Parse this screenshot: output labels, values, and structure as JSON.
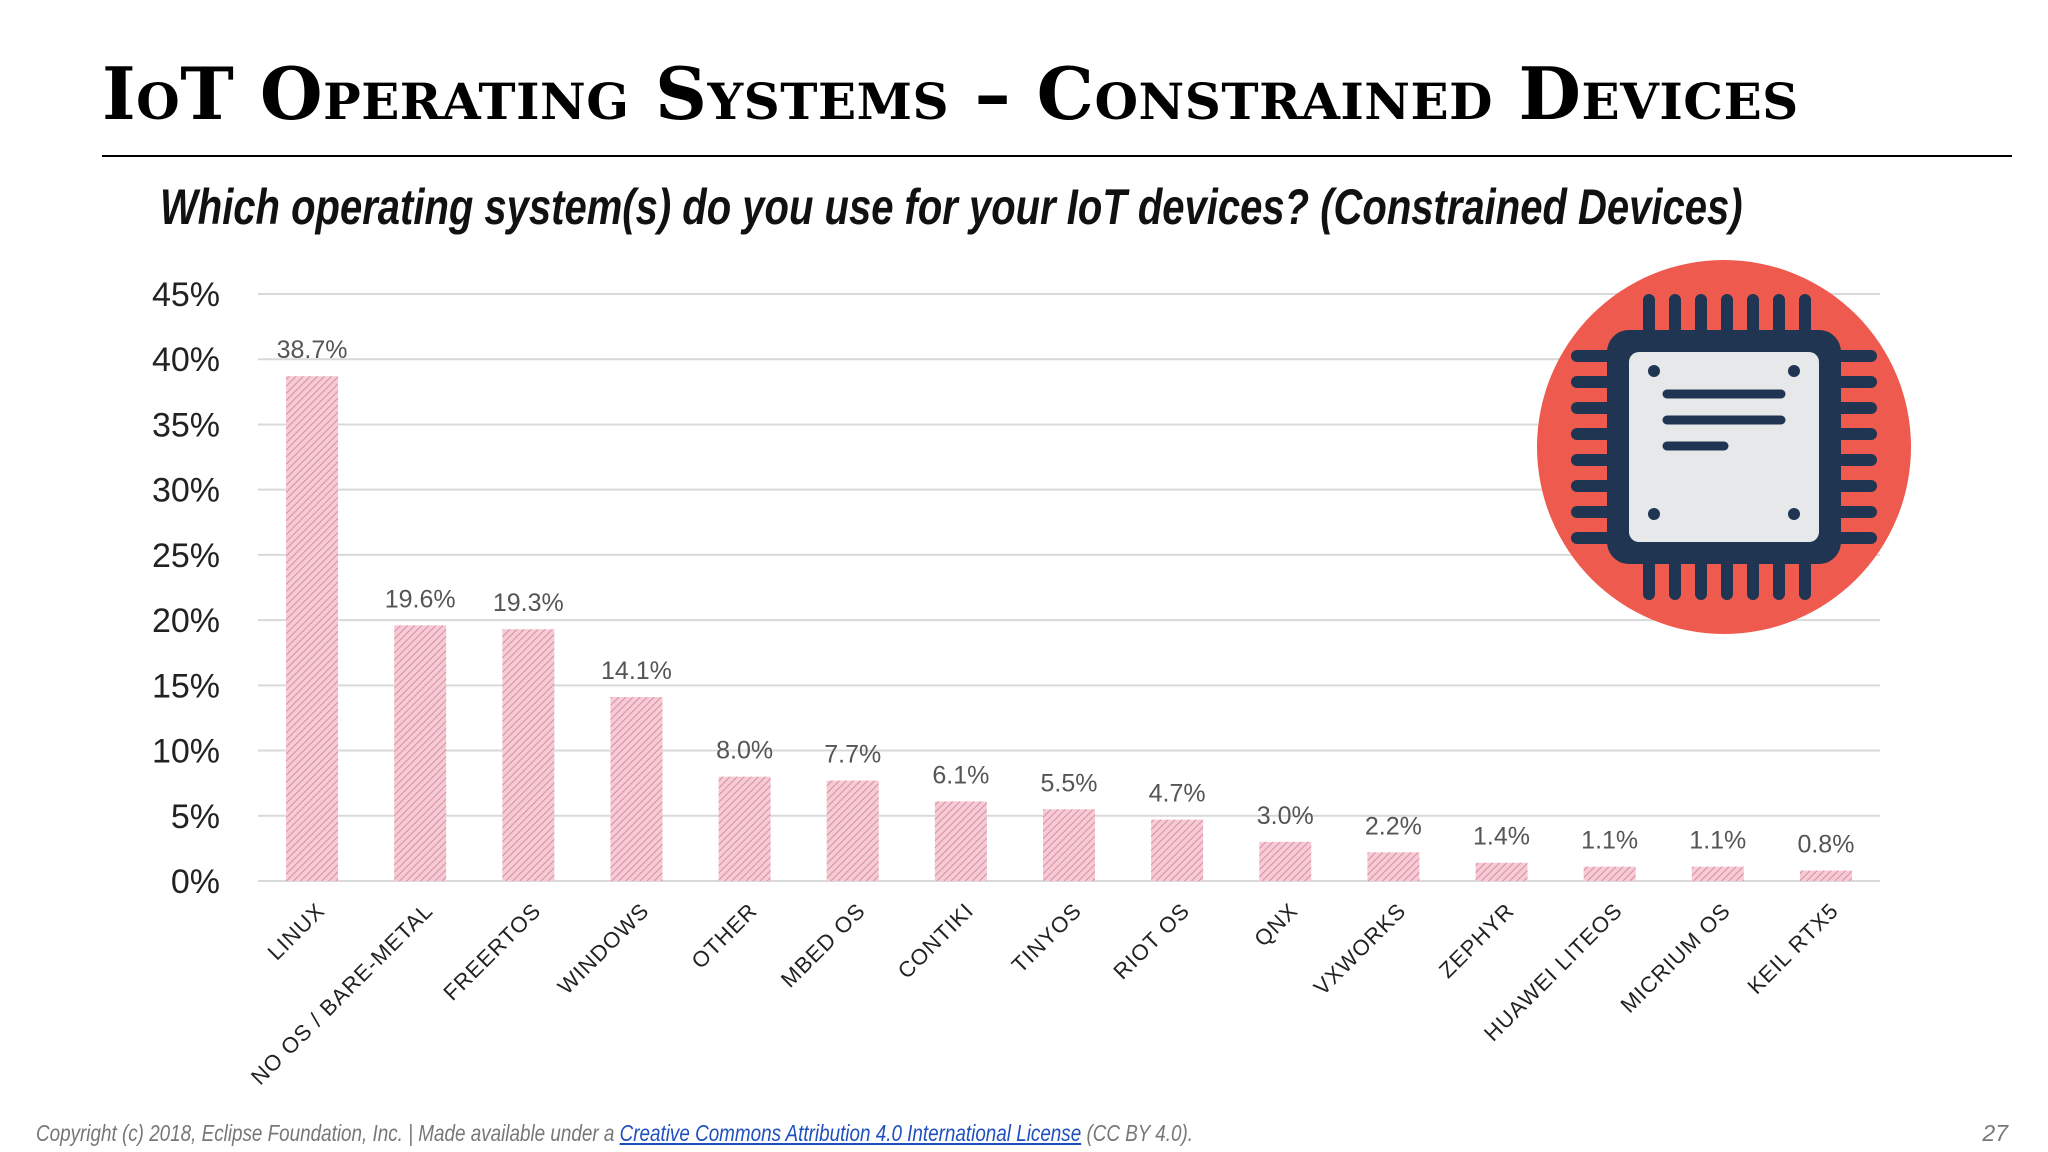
{
  "slide": {
    "title": "IoT Operating Systems – Constrained Devices",
    "subtitle": "Which operating system(s) do you use for your IoT devices?  (Constrained Devices)",
    "page_number": "27"
  },
  "footer": {
    "text_before": "Copyright (c) 2018, Eclipse Foundation, Inc. | Made available under a ",
    "link_text": "Creative Commons Attribution 4.0 International License",
    "text_after": " (CC BY 4.0)."
  },
  "colors": {
    "bar": "#e9a6b4",
    "grid": "#d9d9d9",
    "tick_text": "#222222",
    "label_text": "#555555",
    "chip_circle": "#ef5a4e",
    "chip_dark": "#1f3551",
    "chip_light": "#e6e8ea"
  },
  "icons": {
    "chip": "microchip-icon"
  },
  "chart_data": {
    "type": "bar",
    "title": "Which operating system(s) do you use for your IoT devices?  (Constrained Devices)",
    "xlabel": "",
    "ylabel": "",
    "ylim": [
      0,
      45
    ],
    "yticks": [
      0,
      5,
      10,
      15,
      20,
      25,
      30,
      35,
      40,
      45
    ],
    "ytick_labels": [
      "0%",
      "5%",
      "10%",
      "15%",
      "20%",
      "25%",
      "30%",
      "35%",
      "40%",
      "45%"
    ],
    "grid": true,
    "categories": [
      "LINUX",
      "NO OS / BARE-METAL",
      "FREERTOS",
      "WINDOWS",
      "OTHER",
      "MBED OS",
      "CONTIKI",
      "TINYOS",
      "RIOT OS",
      "QNX",
      "VXWORKS",
      "ZEPHYR",
      "HUAWEI LITEOS",
      "MICRIUM OS",
      "KEIL RTX5"
    ],
    "values": [
      38.7,
      19.6,
      19.3,
      14.1,
      8.0,
      7.7,
      6.1,
      5.5,
      4.7,
      3.0,
      2.2,
      1.4,
      1.1,
      1.1,
      0.8
    ],
    "data_labels": [
      "38.7%",
      "19.6%",
      "19.3%",
      "14.1%",
      "8.0%",
      "7.7%",
      "6.1%",
      "5.5%",
      "4.7%",
      "3.0%",
      "2.2%",
      "1.4%",
      "1.1%",
      "1.1%",
      "0.8%"
    ]
  }
}
